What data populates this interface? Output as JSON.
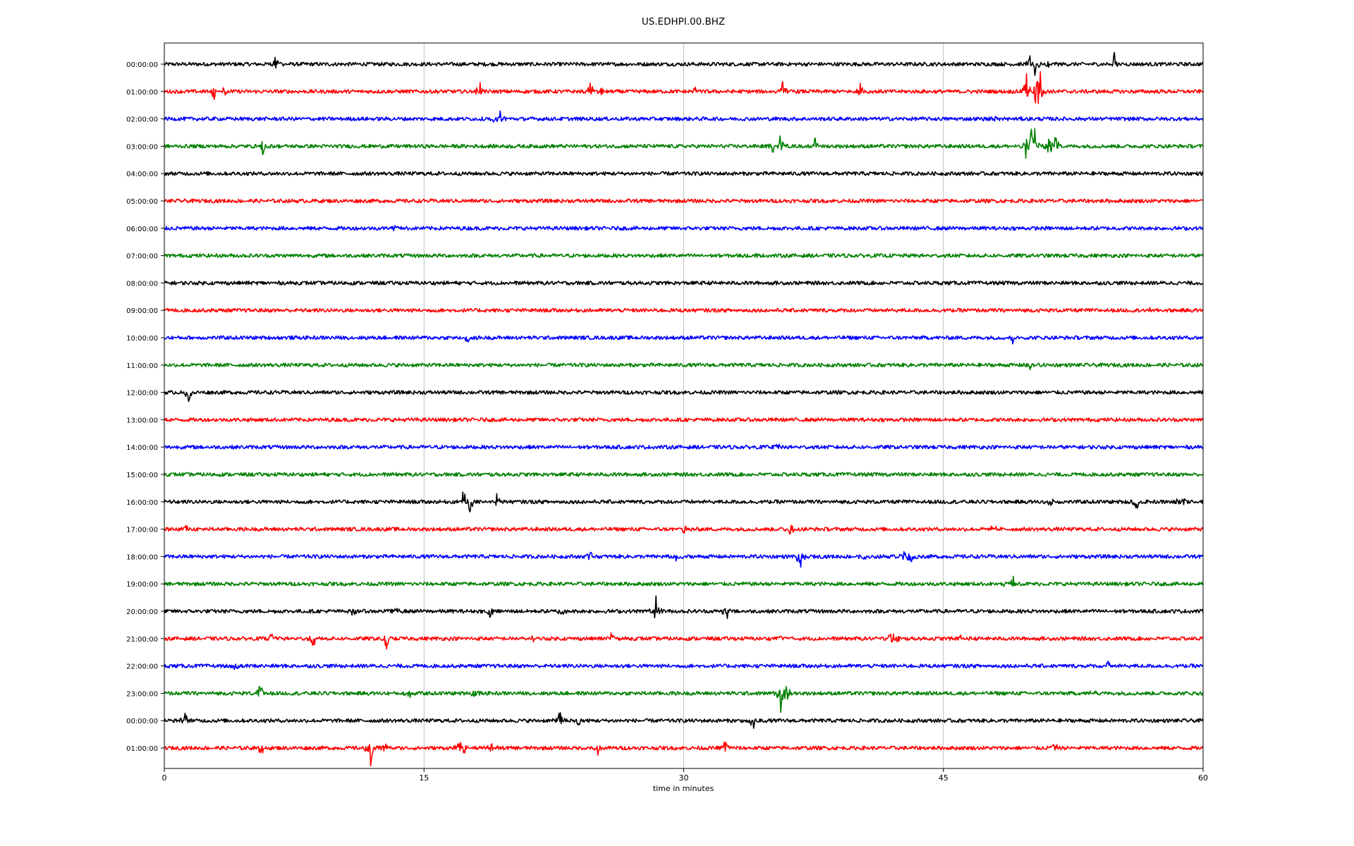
{
  "chart_data": {
    "type": "line",
    "title": "US.EDHPI.00.BHZ",
    "xlabel": "time in minutes",
    "ylabel": "",
    "xlim": [
      0,
      60
    ],
    "x_ticks": [
      "0",
      "15",
      "30",
      "45",
      "60"
    ],
    "grid_x": true,
    "line_colors": [
      "#000000",
      "#ff0000",
      "#0000ff",
      "#008000"
    ],
    "row_labels": [
      "00:00:00",
      "01:00:00",
      "02:00:00",
      "03:00:00",
      "04:00:00",
      "05:00:00",
      "06:00:00",
      "07:00:00",
      "08:00:00",
      "09:00:00",
      "10:00:00",
      "11:00:00",
      "12:00:00",
      "13:00:00",
      "14:00:00",
      "15:00:00",
      "16:00:00",
      "17:00:00",
      "18:00:00",
      "19:00:00",
      "20:00:00",
      "21:00:00",
      "22:00:00",
      "23:00:00",
      "00:00:00",
      "01:00:00"
    ],
    "events": [
      [
        [
          6.5,
          1.8
        ],
        [
          25.5,
          -0.9
        ],
        [
          50,
          0.9
        ],
        [
          50.3,
          -1.3
        ],
        [
          54.9,
          1.5
        ],
        [
          51,
          -0.6
        ]
      ],
      [
        [
          2.9,
          -1.1
        ],
        [
          3.5,
          0.9
        ],
        [
          18.2,
          1.2
        ],
        [
          24.6,
          1.1
        ],
        [
          25.2,
          -1.2
        ],
        [
          30.6,
          0.6
        ],
        [
          35.7,
          1.1
        ],
        [
          40.2,
          -1.5
        ],
        [
          49.8,
          2.2
        ],
        [
          50.4,
          -2.5
        ],
        [
          50.6,
          4
        ]
      ],
      [
        [
          19.4,
          0.8
        ],
        [
          19.0,
          -0.6
        ],
        [
          48.0,
          0.5
        ]
      ],
      [
        [
          5.7,
          -1.1
        ],
        [
          35.2,
          -0.9
        ],
        [
          35.6,
          1.4
        ],
        [
          37.6,
          0.9
        ],
        [
          49.8,
          -1.6
        ],
        [
          50.1,
          2.0
        ],
        [
          50.3,
          1.9
        ],
        [
          51.1,
          -1.9
        ],
        [
          51.5,
          1.7
        ]
      ],
      [],
      [],
      [
        [
          13.3,
          -0.5
        ]
      ],
      [
        [
          34.0,
          0.4
        ]
      ],
      [],
      [
        [
          56.8,
          0.4
        ]
      ],
      [
        [
          17.5,
          -0.5
        ],
        [
          49.0,
          -0.5
        ]
      ],
      [
        [
          50.0,
          -0.4
        ]
      ],
      [
        [
          1.4,
          -0.9
        ]
      ],
      [],
      [
        [
          35.4,
          0.4
        ]
      ],
      [],
      [
        [
          17.3,
          2.2
        ],
        [
          17.6,
          -2.1
        ],
        [
          19.2,
          0.9
        ],
        [
          51.2,
          -0.7
        ],
        [
          56.1,
          -1.1
        ],
        [
          58.6,
          -0.8
        ],
        [
          58.9,
          0.6
        ]
      ],
      [
        [
          1.3,
          0.5
        ],
        [
          30.1,
          -0.7
        ],
        [
          36.2,
          -0.9
        ],
        [
          47.9,
          0.5
        ]
      ],
      [
        [
          24.5,
          1.0
        ],
        [
          29.6,
          -0.6
        ],
        [
          36.7,
          -2.0
        ],
        [
          40.4,
          -0.7
        ],
        [
          42.7,
          0.8
        ],
        [
          43.1,
          -1.0
        ]
      ],
      [
        [
          48.6,
          -0.5
        ],
        [
          49.0,
          0.9
        ]
      ],
      [
        [
          10.9,
          -0.6
        ],
        [
          13.3,
          0.5
        ],
        [
          18.8,
          -0.8
        ],
        [
          22.9,
          -0.8
        ],
        [
          28.4,
          1.3
        ],
        [
          28.4,
          -1.4
        ],
        [
          32.4,
          -1.2
        ],
        [
          32.5,
          0.9
        ]
      ],
      [
        [
          6.2,
          0.8
        ],
        [
          8.6,
          -0.9
        ],
        [
          12.8,
          -1.3
        ],
        [
          21.2,
          -0.6
        ],
        [
          25.8,
          1.3
        ],
        [
          35.6,
          0.8
        ],
        [
          42.0,
          1.2
        ],
        [
          42.3,
          -1.0
        ],
        [
          46.0,
          0.4
        ]
      ],
      [
        [
          4.1,
          -0.6
        ],
        [
          54.5,
          0.4
        ]
      ],
      [
        [
          5.5,
          1.0
        ],
        [
          5.6,
          -0.7
        ],
        [
          14.2,
          -0.7
        ],
        [
          17.9,
          -0.6
        ],
        [
          35.6,
          -1.8
        ],
        [
          35.9,
          -1.7
        ],
        [
          36.0,
          0.8
        ],
        [
          53.7,
          0.4
        ]
      ],
      [
        [
          1.2,
          0.8
        ],
        [
          22.9,
          1.5
        ],
        [
          23.9,
          -1.0
        ],
        [
          34.0,
          -1.1
        ]
      ],
      [
        [
          5.6,
          -1.2
        ],
        [
          11.9,
          -2.0
        ],
        [
          12.7,
          1.4
        ],
        [
          17.1,
          1.1
        ],
        [
          17.3,
          -0.9
        ],
        [
          18.9,
          0.9
        ],
        [
          25,
          -1.0
        ],
        [
          32.4,
          1.0
        ],
        [
          51.4,
          0.8
        ]
      ]
    ]
  }
}
